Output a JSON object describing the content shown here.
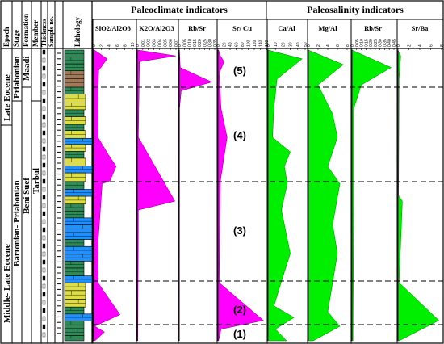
{
  "header": {
    "columns": {
      "epoch": "Epoch",
      "stage": "Stage",
      "formation": "Formation",
      "member": "Member",
      "thickness": "Thickness",
      "sample": "Sample no.",
      "lithology": "Lithology"
    },
    "group_paleoclimate": "Paleoclimate indicators",
    "group_paleosalinity": "Paleosalinity indicators"
  },
  "stratigraphy": {
    "epoch_upper": "Late Eocene",
    "epoch_lower": "Middle- Late Eocene",
    "stage_upper": "Priabonian",
    "stage_lower": "Bartonian- Priabonian",
    "formation_upper": "Maadi",
    "formation_lower": "Beni Suef",
    "member_lower": "Tarbul"
  },
  "zones": [
    "(5)",
    "(4)",
    "(3)",
    "(2)",
    "(1)"
  ],
  "colors": {
    "paleoclimate_fill": "#ff00ff",
    "paleosalinity_fill": "#00ee00",
    "limestone": "#1e90ff",
    "shale": "#2e8b57",
    "sandstone": "#dddd44",
    "marl": "#a0785a"
  },
  "chart_data": [
    {
      "type": "area",
      "title": "SiO2/Al2O3",
      "xlim": [
        0,
        10
      ],
      "ticks": [
        "0",
        "2",
        "4",
        "6",
        "8",
        "10"
      ],
      "points": [
        [
          0.2,
          0
        ],
        [
          3.5,
          0.03
        ],
        [
          1.3,
          0.07
        ],
        [
          1.2,
          0.12
        ],
        [
          1.1,
          0.3
        ],
        [
          3.8,
          0.36
        ],
        [
          5.8,
          0.4
        ],
        [
          4.2,
          0.45
        ],
        [
          2.2,
          0.46
        ],
        [
          1.2,
          0.65
        ],
        [
          1.1,
          0.8
        ],
        [
          6.8,
          0.91
        ],
        [
          0.3,
          0.95
        ],
        [
          2.8,
          0.97
        ],
        [
          0.3,
          1
        ]
      ]
    },
    {
      "type": "area",
      "title": "K2O/Al2O3",
      "xlim": [
        0,
        0.07
      ],
      "ticks": [
        "0",
        "0.01",
        "0.02",
        "0.03",
        "0.04",
        "0.05",
        "0.06",
        "0.07"
      ],
      "points": [
        [
          0.001,
          0
        ],
        [
          0.07,
          0.02
        ],
        [
          0.004,
          0.04
        ],
        [
          0.002,
          0.3
        ],
        [
          0.068,
          0.52
        ],
        [
          0.002,
          0.55
        ],
        [
          0.001,
          1
        ]
      ]
    },
    {
      "type": "area",
      "title": "Rb/Sr",
      "xlim": [
        0,
        0.35
      ],
      "ticks": [
        "0",
        "0.05",
        "0.10",
        "0.15",
        "0.20",
        "0.25",
        "0.30",
        "0.35"
      ],
      "points": [
        [
          0.002,
          0
        ],
        [
          0.01,
          0.06
        ],
        [
          0.32,
          0.11
        ],
        [
          0.02,
          0.14
        ],
        [
          0.003,
          0.2
        ],
        [
          0.002,
          1
        ]
      ]
    },
    {
      "type": "area",
      "title": "Sr/ Cu",
      "xlim": [
        0,
        160
      ],
      "ticks": [
        "0",
        "20",
        "40",
        "60",
        "80",
        "100",
        "120",
        "140",
        "160"
      ],
      "points": [
        [
          2,
          0
        ],
        [
          8,
          0.02
        ],
        [
          20,
          0.04
        ],
        [
          4,
          0.08
        ],
        [
          10,
          0.2
        ],
        [
          30,
          0.3
        ],
        [
          8,
          0.45
        ],
        [
          6,
          0.6
        ],
        [
          4,
          0.8
        ],
        [
          150,
          0.93
        ],
        [
          10,
          0.96
        ],
        [
          2,
          1
        ]
      ]
    },
    {
      "type": "area",
      "title": "Ca/Al",
      "xlim": [
        0,
        50
      ],
      "ticks": [
        "0",
        "10",
        "20",
        "30",
        "40",
        "50"
      ],
      "points": [
        [
          0,
          0
        ],
        [
          46,
          0.03
        ],
        [
          12,
          0.1
        ],
        [
          8,
          0.2
        ],
        [
          6,
          0.3
        ],
        [
          30,
          0.35
        ],
        [
          22,
          0.4
        ],
        [
          26,
          0.46
        ],
        [
          18,
          0.55
        ],
        [
          30,
          0.7
        ],
        [
          20,
          0.78
        ],
        [
          8,
          0.88
        ],
        [
          35,
          0.92
        ],
        [
          10,
          0.96
        ],
        [
          25,
          1
        ]
      ]
    },
    {
      "type": "area",
      "title": "Mg/Al",
      "xlim": [
        0,
        8
      ],
      "ticks": [
        "0",
        "2",
        "4",
        "6",
        "8"
      ],
      "points": [
        [
          0,
          0
        ],
        [
          7.2,
          0.05
        ],
        [
          2,
          0.12
        ],
        [
          5,
          0.22
        ],
        [
          6,
          0.3
        ],
        [
          4,
          0.4
        ],
        [
          6.5,
          0.46
        ],
        [
          5,
          0.6
        ],
        [
          6,
          0.7
        ],
        [
          5,
          0.8
        ],
        [
          4,
          0.9
        ],
        [
          6.5,
          0.95
        ],
        [
          1,
          1
        ]
      ]
    },
    {
      "type": "area",
      "title": "Rb/Sr",
      "xlim": [
        0,
        0.45
      ],
      "ticks": [
        "0",
        "0.05",
        "0.10",
        "0.15",
        "0.20",
        "0.25",
        "0.30",
        "0.35",
        "0.40",
        "0.45"
      ],
      "points": [
        [
          0,
          0
        ],
        [
          0.42,
          0.06
        ],
        [
          0.1,
          0.12
        ],
        [
          0.02,
          0.2
        ],
        [
          0.02,
          0.5
        ],
        [
          0.01,
          1
        ]
      ]
    },
    {
      "type": "area",
      "title": "Sr/Ba",
      "xlim": [
        0,
        8
      ],
      "ticks": [
        "0",
        "2",
        "4",
        "6",
        "8"
      ],
      "points": [
        [
          0,
          0
        ],
        [
          0.5,
          0.02
        ],
        [
          0.2,
          0.1
        ],
        [
          0.1,
          0.5
        ],
        [
          0.8,
          0.52
        ],
        [
          0.2,
          0.8
        ],
        [
          7.5,
          0.93
        ],
        [
          0.2,
          1
        ]
      ]
    }
  ]
}
